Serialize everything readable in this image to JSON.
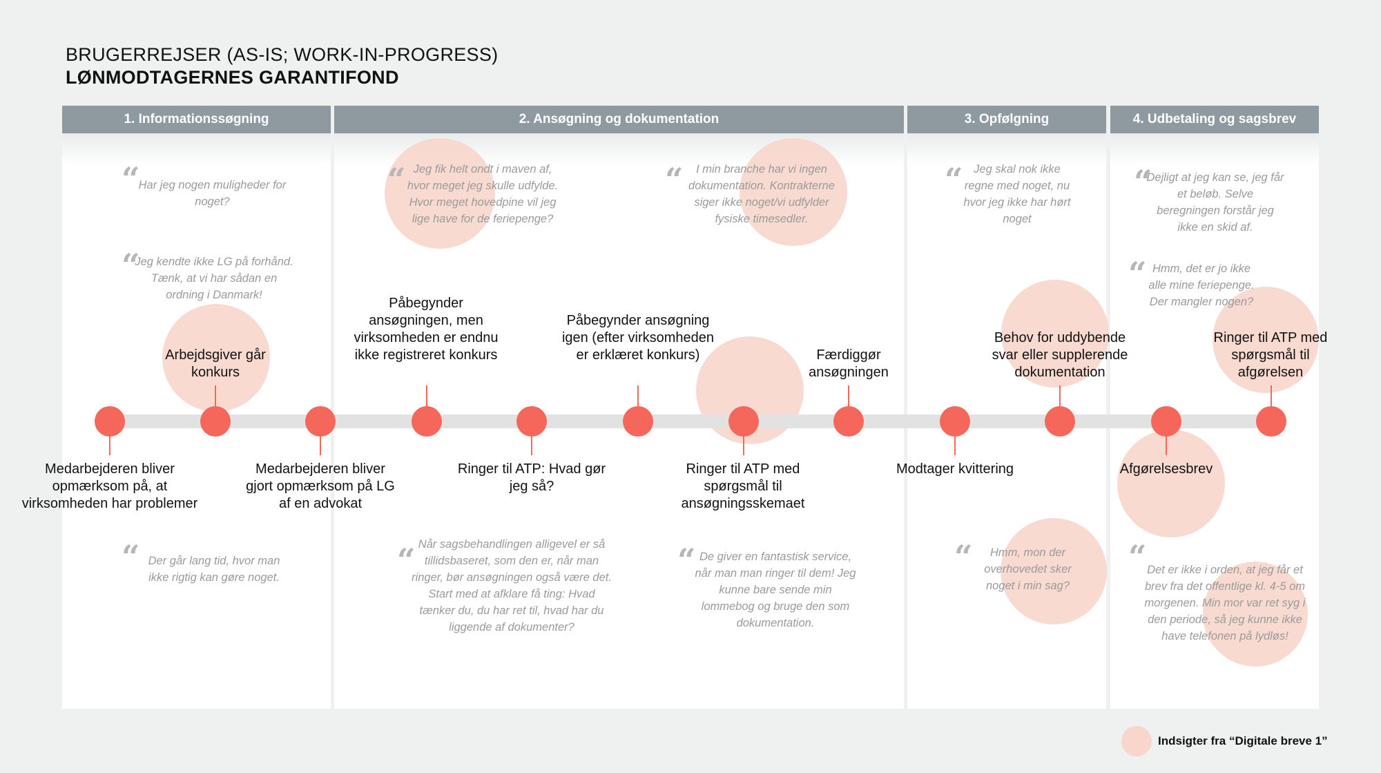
{
  "title": {
    "line1": "BRUGERREJSER (AS-IS; WORK-IN-PROGRESS)",
    "line2": "LØNMODTAGERNES GARANTIFOND"
  },
  "phases": [
    {
      "label": "1. Informationssøgning"
    },
    {
      "label": "2. Ansøgning og dokumentation"
    },
    {
      "label": "3. Opfølgning"
    },
    {
      "label": "4. Udbetaling og sagsbrev"
    }
  ],
  "quotes": {
    "q1": "Har jeg nogen muligheder for noget?",
    "q2": "Jeg kendte ikke LG på forhånd. Tænk, at vi har sådan en ordning i Danmark!",
    "q3": "Der går lang tid, hvor man ikke rigtig kan gøre noget.",
    "q4": "Jeg fik helt ondt i maven af, hvor meget jeg skulle udfylde. Hvor meget hovedpine vil jeg lige have for de feriepenge?",
    "q5": "I min branche har vi ingen dokumentation. Kontrakterne siger ikke noget/vi udfylder fysiske timesedler.",
    "q6": "Når sagsbehandlingen alligevel er så tillidsbaseret, som den er, når man ringer, bør ansøgningen også være det. Start med at afklare få ting: Hvad tænker du, du har ret til, hvad har du liggende af dokumenter?",
    "q7": "De giver en fantastisk service, når man man ringer til dem! Jeg kunne bare sende min lommebog og bruge den som dokumentation.",
    "q8": "Jeg skal nok ikke regne med noget, nu hvor jeg ikke har hørt noget",
    "q9": "Hmm, mon der overhovedet sker noget i min sag?",
    "q10": "Dejligt at jeg kan se, jeg får et beløb. Selve beregningen forstår jeg ikke en skid af.",
    "q11": "Hmm, det er jo ikke alle mine feriepenge. Der mangler nogen?",
    "q12": "Det er ikke i orden, at jeg får et brev fra det offentlige kl. 4-5 om morgenen. Min mor var ret syg i den periode, så jeg kunne ikke have telefonen på lydløs!"
  },
  "quote_mark": "“",
  "steps": {
    "s1": "Medarbejderen bliver opmærksom på, at virksomheden har problemer",
    "s2": "Arbejdsgiver går konkurs",
    "s3": "Medarbejderen bliver gjort opmærksom på LG af en advokat",
    "s4": "Påbegynder ansøgningen, men virksomheden er endnu ikke registreret konkurs",
    "s5": "Ringer til ATP: Hvad gør jeg så?",
    "s6": "Påbegynder ansøgning igen (efter virksomheden er erklæret konkurs)",
    "s7": "Ringer til ATP med spørgsmål til ansøgningsskemaet",
    "s8": "Færdiggør ansøgningen",
    "s9": "Modtager kvittering",
    "s10": "Behov for uddybende svar eller supplerende dokumentation",
    "s11": "Afgørelsesbrev",
    "s12": "Ringer til ATP med spørgsmål til afgørelsen"
  },
  "legend": {
    "label": "Indsigter fra “Digitale breve 1”"
  },
  "colors": {
    "dot": "#f4675a",
    "insight_bubble": "#f8d6cc",
    "phase_header": "#8e9aa0",
    "timeline": "#e2e2e2"
  }
}
